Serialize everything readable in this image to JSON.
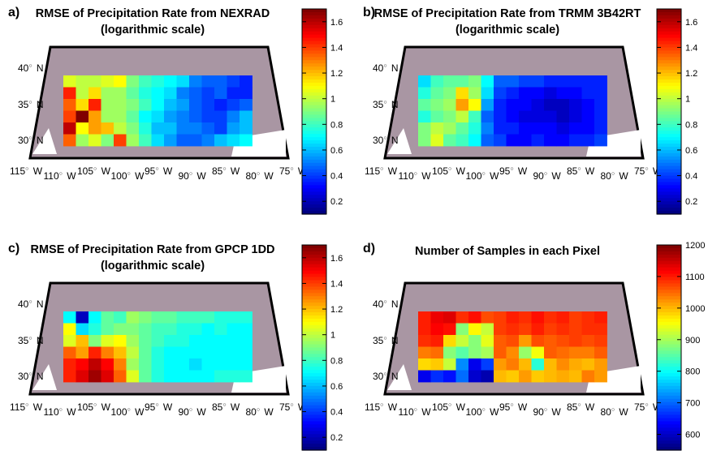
{
  "chart_data": [
    {
      "type": "heatmap",
      "panel_label": "a)",
      "title": "RMSE of Precipitation Rate from NEXRAD",
      "subtitle": "(logarithmic scale)",
      "colorbar": {
        "range": [
          0.1,
          1.7
        ],
        "ticks": [
          "1.6",
          "1.4",
          "1.2",
          "1",
          "0.8",
          "0.6",
          "0.4",
          "0.2"
        ]
      },
      "lat_labels": [
        "40",
        "35",
        "30"
      ],
      "lon_labels": [
        "115",
        "110",
        "105",
        "100",
        "95",
        "90",
        "85",
        "80",
        "75"
      ],
      "lon_suffix": "W",
      "lat_suffix": "N",
      "grid": [
        [
          1.05,
          1.0,
          1.0,
          1.05,
          1.1,
          0.9,
          0.8,
          0.75,
          0.7,
          0.65,
          0.5,
          0.45,
          0.45,
          0.4,
          0.35
        ],
        [
          1.45,
          1.0,
          1.15,
          0.95,
          0.95,
          0.85,
          0.75,
          0.7,
          0.65,
          0.5,
          0.45,
          0.4,
          0.45,
          0.35,
          0.35
        ],
        [
          1.35,
          1.15,
          1.45,
          0.95,
          0.95,
          0.9,
          0.8,
          0.7,
          0.6,
          0.55,
          0.45,
          0.4,
          0.35,
          0.4,
          0.45
        ],
        [
          1.4,
          1.7,
          1.25,
          0.95,
          0.95,
          0.85,
          0.7,
          0.65,
          0.55,
          0.5,
          0.45,
          0.4,
          0.4,
          0.5,
          0.6
        ],
        [
          1.6,
          1.1,
          1.25,
          1.2,
          1.0,
          0.9,
          0.75,
          0.6,
          0.6,
          0.5,
          0.5,
          0.45,
          0.4,
          0.55,
          0.6
        ],
        [
          1.35,
          0.95,
          1.05,
          0.9,
          1.4,
          0.95,
          0.8,
          0.65,
          0.55,
          0.45,
          0.45,
          0.5,
          0.6,
          0.65,
          0.7
        ]
      ]
    },
    {
      "type": "heatmap",
      "panel_label": "b)",
      "title": "RMSE of Precipitation Rate from TRMM 3B42RT",
      "subtitle": "(logarithmic scale)",
      "colorbar": {
        "range": [
          0.1,
          1.7
        ],
        "ticks": [
          "1.6",
          "1.4",
          "1.2",
          "1",
          "0.8",
          "0.6",
          "0.4",
          "0.2"
        ]
      },
      "lat_labels": [
        "40",
        "35",
        "30"
      ],
      "lon_labels": [
        "115",
        "110",
        "105",
        "100",
        "95",
        "90",
        "85",
        "80",
        "75"
      ],
      "lon_suffix": "W",
      "lat_suffix": "N",
      "grid": [
        [
          0.65,
          0.8,
          0.85,
          0.85,
          0.9,
          0.7,
          0.45,
          0.45,
          0.4,
          0.4,
          0.35,
          0.35,
          0.35,
          0.35,
          0.35
        ],
        [
          0.75,
          0.85,
          0.9,
          1.15,
          0.95,
          0.65,
          0.4,
          0.35,
          0.3,
          0.3,
          0.25,
          0.3,
          0.3,
          0.35,
          0.35
        ],
        [
          0.85,
          0.9,
          0.95,
          1.25,
          1.1,
          0.55,
          0.35,
          0.3,
          0.3,
          0.25,
          0.2,
          0.2,
          0.25,
          0.3,
          0.35
        ],
        [
          0.75,
          0.85,
          0.9,
          1.0,
          0.8,
          0.45,
          0.35,
          0.3,
          0.25,
          0.25,
          0.25,
          0.2,
          0.25,
          0.3,
          0.35
        ],
        [
          0.9,
          1.0,
          0.95,
          0.85,
          0.75,
          0.5,
          0.35,
          0.35,
          0.3,
          0.3,
          0.3,
          0.25,
          0.3,
          0.3,
          0.35
        ],
        [
          0.9,
          1.05,
          0.85,
          0.8,
          0.7,
          0.45,
          0.4,
          0.3,
          0.3,
          0.35,
          0.3,
          0.3,
          0.35,
          0.35,
          0.4
        ]
      ]
    },
    {
      "type": "heatmap",
      "panel_label": "c)",
      "title": "RMSE of Precipitation Rate from GPCP 1DD",
      "subtitle": "(logarithmic scale)",
      "colorbar": {
        "range": [
          0.1,
          1.7
        ],
        "ticks": [
          "1.6",
          "1.4",
          "1.2",
          "1",
          "0.8",
          "0.6",
          "0.4",
          "0.2"
        ]
      },
      "lat_labels": [
        "40",
        "35",
        "30"
      ],
      "lon_labels": [
        "115",
        "110",
        "105",
        "100",
        "95",
        "90",
        "85",
        "80",
        "75"
      ],
      "lon_suffix": "W",
      "lat_suffix": "N",
      "grid": [
        [
          0.7,
          0.2,
          0.7,
          0.85,
          0.8,
          0.95,
          0.9,
          0.85,
          0.85,
          0.8,
          0.8,
          0.8,
          0.75,
          0.75,
          0.75
        ],
        [
          1.1,
          0.65,
          0.75,
          0.85,
          0.9,
          0.9,
          0.85,
          0.8,
          0.8,
          0.75,
          0.75,
          0.7,
          0.75,
          0.7,
          0.7
        ],
        [
          1.05,
          1.2,
          0.9,
          1.05,
          1.1,
          0.95,
          0.85,
          0.8,
          0.75,
          0.75,
          0.7,
          0.7,
          0.7,
          0.7,
          0.7
        ],
        [
          1.35,
          1.25,
          1.45,
          1.3,
          1.2,
          1.0,
          0.85,
          0.75,
          0.7,
          0.7,
          0.7,
          0.7,
          0.7,
          0.7,
          0.7
        ],
        [
          1.45,
          1.5,
          1.6,
          1.5,
          1.3,
          0.95,
          0.85,
          0.75,
          0.7,
          0.7,
          0.65,
          0.7,
          0.7,
          0.7,
          0.7
        ],
        [
          1.45,
          1.55,
          1.65,
          1.55,
          1.35,
          1.05,
          0.85,
          0.75,
          0.7,
          0.7,
          0.7,
          0.7,
          0.75,
          0.75,
          0.75
        ]
      ]
    },
    {
      "type": "heatmap",
      "panel_label": "d)",
      "title": "Number of Samples in each Pixel",
      "subtitle": "",
      "colorbar": {
        "range": [
          550,
          1200
        ],
        "ticks": [
          "1200",
          "1100",
          "1000",
          "900",
          "800",
          "700",
          "600"
        ]
      },
      "lat_labels": [
        "40",
        "35",
        "30"
      ],
      "lon_labels": [
        "115",
        "110",
        "105",
        "100",
        "95",
        "90",
        "85",
        "80",
        "75"
      ],
      "lon_suffix": "W",
      "lat_suffix": "N",
      "grid": [
        [
          1100,
          1130,
          1140,
          1090,
          1110,
          1070,
          1080,
          1100,
          1090,
          1110,
          1090,
          1100,
          1080,
          1090,
          1100
        ],
        [
          1100,
          1120,
          1110,
          880,
          960,
          920,
          1080,
          1090,
          1080,
          1100,
          1080,
          1090,
          1080,
          1090,
          1090
        ],
        [
          1090,
          1100,
          980,
          920,
          880,
          940,
          1060,
          1070,
          1020,
          1070,
          1060,
          1070,
          1080,
          1070,
          1080
        ],
        [
          1040,
          1050,
          880,
          850,
          880,
          900,
          1060,
          1030,
          890,
          950,
          1060,
          1050,
          1040,
          1040,
          1060
        ],
        [
          980,
          990,
          920,
          720,
          620,
          670,
          1020,
          1040,
          1000,
          820,
          1000,
          1030,
          1010,
          1000,
          1020
        ],
        [
          620,
          660,
          640,
          700,
          600,
          580,
          1000,
          990,
          1020,
          990,
          1000,
          1010,
          1000,
          1040,
          1020
        ]
      ]
    }
  ]
}
